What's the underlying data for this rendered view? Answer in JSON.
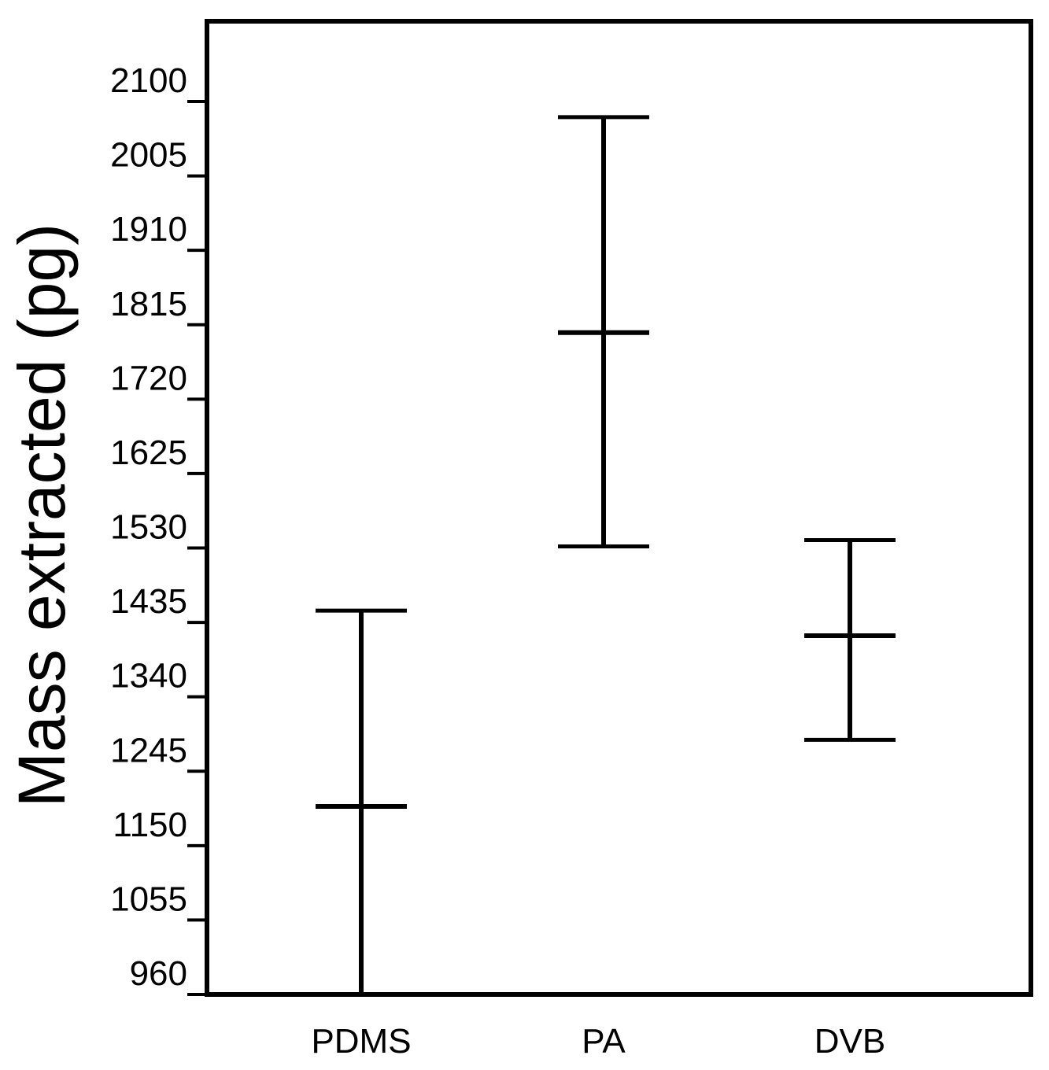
{
  "chart_data": {
    "type": "errorbar",
    "title": "",
    "xlabel": "",
    "ylabel": "Mass extracted (pg)",
    "categories": [
      "PDMS",
      "PA",
      "DVB"
    ],
    "series": [
      {
        "mean": [
          1200,
          1805,
          1418
        ],
        "upper": [
          1450,
          2080,
          1540
        ],
        "lower": [
          960,
          1532,
          1285
        ]
      }
    ],
    "yticks": [
      960,
      1055,
      1150,
      1245,
      1340,
      1435,
      1530,
      1625,
      1720,
      1815,
      1910,
      2005,
      2100
    ],
    "ylim": [
      960,
      2200
    ],
    "grid": false,
    "legend": "none",
    "colors": {
      "line": "#000000",
      "background": "#ffffff"
    }
  }
}
